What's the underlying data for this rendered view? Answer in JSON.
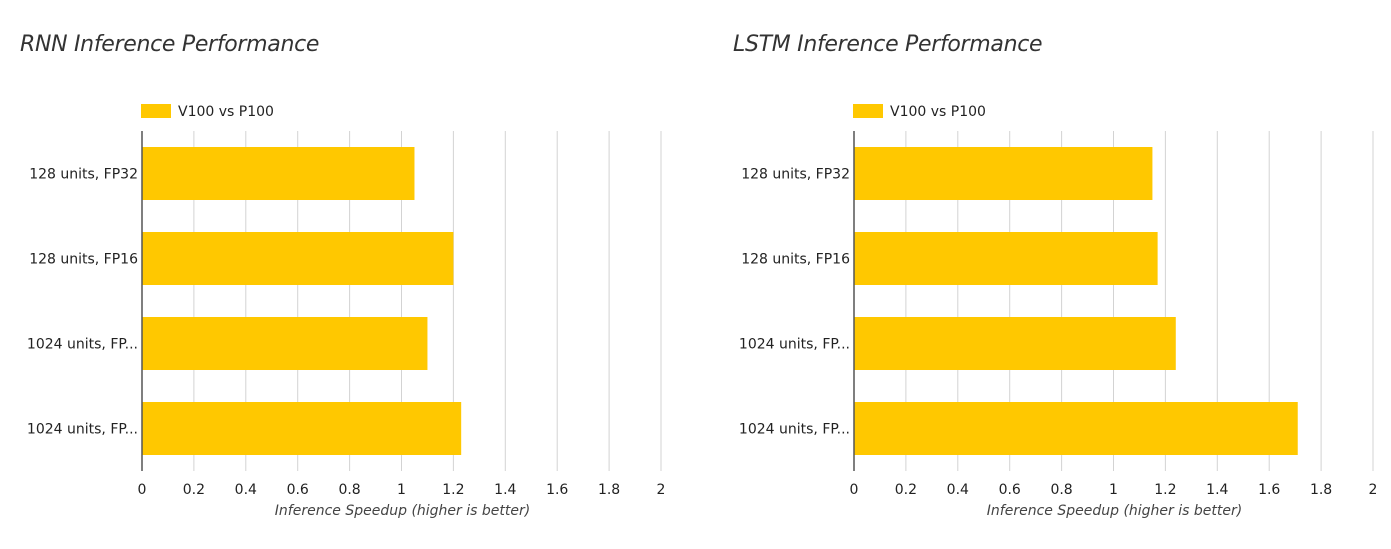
{
  "colors": {
    "bar": "#FFC800",
    "grid": "#d3d3d3",
    "axis": "#555555"
  },
  "chart_data": [
    {
      "type": "bar",
      "orientation": "horizontal",
      "title": "RNN Inference Performance",
      "categories": [
        "128 units, FP32",
        "128 units, FP16",
        "1024 units, FP...",
        "1024 units, FP..."
      ],
      "series": [
        {
          "name": "V100 vs P100",
          "values": [
            1.05,
            1.2,
            1.1,
            1.23
          ]
        }
      ],
      "xlabel": "Inference Speedup (higher is better)",
      "ylabel": "",
      "xlim": [
        0,
        2
      ],
      "xticks": [
        "0",
        "0.2",
        "0.4",
        "0.6",
        "0.8",
        "1",
        "1.2",
        "1.4",
        "1.6",
        "1.8",
        "2"
      ],
      "grid": true,
      "legend": "top"
    },
    {
      "type": "bar",
      "orientation": "horizontal",
      "title": "LSTM Inference Performance",
      "categories": [
        "128 units, FP32",
        "128 units, FP16",
        "1024 units, FP...",
        "1024 units, FP..."
      ],
      "series": [
        {
          "name": "V100 vs P100",
          "values": [
            1.15,
            1.17,
            1.24,
            1.71
          ]
        }
      ],
      "xlabel": "Inference Speedup (higher is better)",
      "ylabel": "",
      "xlim": [
        0,
        2
      ],
      "xticks": [
        "0",
        "0.2",
        "0.4",
        "0.6",
        "0.8",
        "1",
        "1.2",
        "1.4",
        "1.6",
        "1.8",
        "2"
      ],
      "grid": true,
      "legend": "top"
    }
  ]
}
